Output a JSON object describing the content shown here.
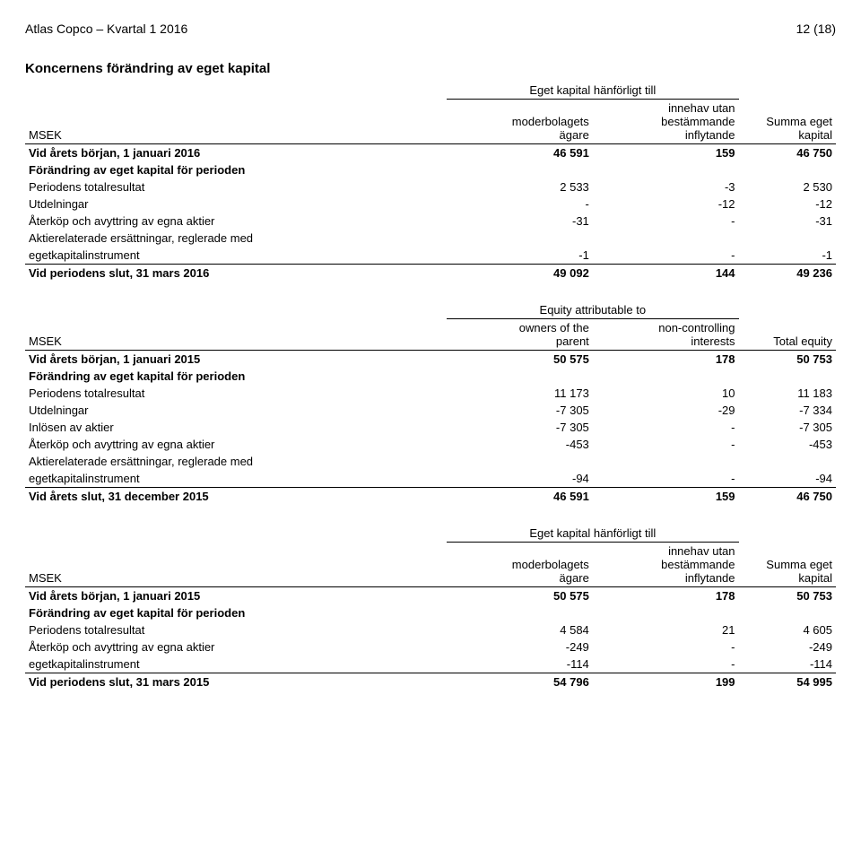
{
  "page_header": {
    "left": "Atlas Copco – Kvartal 1 2016",
    "right": "12 (18)"
  },
  "section_title": "Koncernens förändring av eget kapital",
  "super_header_sv": "Eget kapital hänförligt till",
  "super_header_en": "Equity attributable to",
  "headers_sv": {
    "c0": "MSEK",
    "c1a": "moderbolagets",
    "c1b": "ägare",
    "c2a": "innehav utan",
    "c2b": "bestämmande",
    "c2c": "inflytande",
    "c3a": "Summa eget",
    "c3b": "kapital"
  },
  "headers_en": {
    "c0": "MSEK",
    "c1a": "owners of the",
    "c1b": "parent",
    "c2a": "non-controlling",
    "c2b": "interests",
    "c3": "Total equity"
  },
  "row_labels": {
    "begin2016": "Vid årets början, 1 januari 2016",
    "begin2015": "Vid årets början, 1 januari 2015",
    "change": "Förändring av eget kapital för perioden",
    "totres": "Periodens totalresultat",
    "utdel": "Utdelningar",
    "aterk": "Återköp och avyttring av egna aktier",
    "inlosen": "Inlösen av aktier",
    "akt1": "Aktierelaterade ersättningar, reglerade med",
    "akt2": "egetkapitalinstrument",
    "end_mar2016": "Vid periodens slut, 31 mars 2016",
    "end_dec2015": "Vid årets slut, 31 december 2015",
    "end_mar2015": "Vid periodens slut, 31 mars 2015"
  },
  "t1": {
    "begin": [
      "46 591",
      "159",
      "46 750"
    ],
    "totres": [
      "2 533",
      "-3",
      "2 530"
    ],
    "utdel": [
      "-",
      "-12",
      "-12"
    ],
    "aterk": [
      "-31",
      "-",
      "-31"
    ],
    "akt": [
      "-1",
      "-",
      "-1"
    ],
    "end": [
      "49 092",
      "144",
      "49 236"
    ]
  },
  "t2": {
    "begin": [
      "50 575",
      "178",
      "50 753"
    ],
    "totres": [
      "11 173",
      "10",
      "11 183"
    ],
    "utdel": [
      "-7 305",
      "-29",
      "-7 334"
    ],
    "inlosen": [
      "-7 305",
      "-",
      "-7 305"
    ],
    "aterk": [
      "-453",
      "-",
      "-453"
    ],
    "akt": [
      "-94",
      "-",
      "-94"
    ],
    "end": [
      "46 591",
      "159",
      "46 750"
    ]
  },
  "t3": {
    "begin": [
      "50 575",
      "178",
      "50 753"
    ],
    "totres": [
      "4 584",
      "21",
      "4 605"
    ],
    "aterk": [
      "-249",
      "-",
      "-249"
    ],
    "akt": [
      "-114",
      "-",
      "-114"
    ],
    "end": [
      "54 796",
      "199",
      "54 995"
    ]
  }
}
